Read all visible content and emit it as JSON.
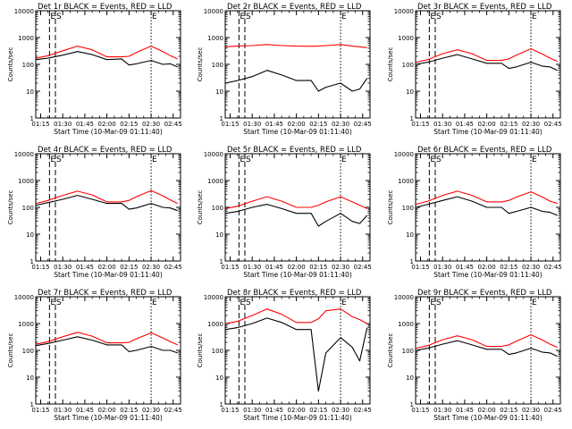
{
  "figure": {
    "axis_ylabel": "Counts/sec",
    "axis_xlabel": "Start Time (10-Mar-09 01:11:40)",
    "x_ticks": [
      "01:15",
      "01:30",
      "01:45",
      "02:00",
      "02:15",
      "02:30",
      "02:45"
    ],
    "y_ticks": [
      "1",
      "10",
      "100",
      "1000",
      "10000"
    ],
    "marker_labels": [
      "E",
      "S",
      "E"
    ]
  },
  "colors": {
    "events": "#000000",
    "lld": "#ff0000",
    "axes": "#000000"
  },
  "chart_data": [
    {
      "type": "line",
      "title": "Det 1r BLACK = Events, RED = LLD",
      "xlabel": "Start Time (10-Mar-09 01:11:40)",
      "ylabel": "Counts/sec",
      "xlim": [
        "01:11:40",
        "02:50:00"
      ],
      "ylim": [
        1,
        10000
      ],
      "y_scale": "log",
      "x_ticks": [
        "01:15",
        "01:30",
        "01:45",
        "02:00",
        "02:15",
        "02:30",
        "02:45"
      ],
      "markers": [
        {
          "label": "E",
          "time": "01:21",
          "style": "dashed"
        },
        {
          "label": "S",
          "time": "01:25",
          "style": "dashed"
        },
        {
          "label": "E",
          "time": "02:30",
          "style": "dotted"
        }
      ],
      "x": [
        "01:12",
        "01:20",
        "01:30",
        "01:40",
        "01:50",
        "02:00",
        "02:10",
        "02:15",
        "02:20",
        "02:30",
        "02:38",
        "02:43",
        "02:48"
      ],
      "series": [
        {
          "name": "Events",
          "color": "#000000",
          "values": [
            150,
            170,
            220,
            300,
            230,
            150,
            160,
            95,
            105,
            140,
            100,
            105,
            80
          ]
        },
        {
          "name": "LLD",
          "color": "#ff0000",
          "values": [
            170,
            210,
            320,
            480,
            350,
            190,
            190,
            200,
            280,
            480,
            300,
            210,
            160
          ]
        }
      ]
    },
    {
      "type": "line",
      "title": "Det 2r BLACK = Events, RED = LLD",
      "xlabel": "Start Time (10-Mar-09 01:11:40)",
      "ylabel": "Counts/sec",
      "xlim": [
        "01:11:40",
        "02:50:00"
      ],
      "ylim": [
        1,
        10000
      ],
      "y_scale": "log",
      "x_ticks": [
        "01:15",
        "01:30",
        "01:45",
        "02:00",
        "02:15",
        "02:30",
        "02:45"
      ],
      "markers": [
        {
          "label": "E",
          "time": "01:21",
          "style": "dashed"
        },
        {
          "label": "S",
          "time": "01:25",
          "style": "dashed"
        },
        {
          "label": "E",
          "time": "02:30",
          "style": "dotted"
        }
      ],
      "x": [
        "01:12",
        "01:20",
        "01:30",
        "01:40",
        "01:50",
        "02:00",
        "02:10",
        "02:15",
        "02:20",
        "02:30",
        "02:38",
        "02:43",
        "02:48"
      ],
      "series": [
        {
          "name": "Events",
          "color": "#000000",
          "values": [
            20,
            25,
            35,
            60,
            40,
            25,
            25,
            10,
            14,
            20,
            10,
            12,
            30
          ]
        },
        {
          "name": "LLD",
          "color": "#ff0000",
          "values": [
            450,
            480,
            500,
            550,
            500,
            480,
            470,
            480,
            500,
            550,
            480,
            450,
            420
          ]
        }
      ]
    },
    {
      "type": "line",
      "title": "Det 3r BLACK = Events, RED = LLD",
      "xlabel": "Start Time (10-Mar-09 01:11:40)",
      "ylabel": "Counts/sec",
      "xlim": [
        "01:11:40",
        "02:50:00"
      ],
      "ylim": [
        1,
        10000
      ],
      "y_scale": "log",
      "x_ticks": [
        "01:15",
        "01:30",
        "01:45",
        "02:00",
        "02:15",
        "02:30",
        "02:45"
      ],
      "markers": [
        {
          "label": "E",
          "time": "01:21",
          "style": "dashed"
        },
        {
          "label": "S",
          "time": "01:25",
          "style": "dashed"
        },
        {
          "label": "E",
          "time": "02:30",
          "style": "dotted"
        }
      ],
      "x": [
        "01:12",
        "01:20",
        "01:30",
        "01:40",
        "01:50",
        "02:00",
        "02:10",
        "02:15",
        "02:20",
        "02:30",
        "02:38",
        "02:43",
        "02:48"
      ],
      "series": [
        {
          "name": "Events",
          "color": "#000000",
          "values": [
            100,
            120,
            170,
            230,
            160,
            110,
            110,
            70,
            80,
            120,
            85,
            80,
            60
          ]
        },
        {
          "name": "LLD",
          "color": "#ff0000",
          "values": [
            120,
            150,
            250,
            350,
            250,
            140,
            140,
            160,
            220,
            380,
            240,
            170,
            130
          ]
        }
      ]
    },
    {
      "type": "line",
      "title": "Det 4r BLACK = Events, RED = LLD",
      "xlabel": "Start Time (10-Mar-09 01:11:40)",
      "ylabel": "Counts/sec",
      "xlim": [
        "01:11:40",
        "02:50:00"
      ],
      "ylim": [
        1,
        10000
      ],
      "y_scale": "log",
      "x_ticks": [
        "01:15",
        "01:30",
        "01:45",
        "02:00",
        "02:15",
        "02:30",
        "02:45"
      ],
      "markers": [
        {
          "label": "E",
          "time": "01:21",
          "style": "dashed"
        },
        {
          "label": "S",
          "time": "01:25",
          "style": "dashed"
        },
        {
          "label": "E",
          "time": "02:30",
          "style": "dotted"
        }
      ],
      "x": [
        "01:12",
        "01:20",
        "01:30",
        "01:40",
        "01:50",
        "02:00",
        "02:10",
        "02:15",
        "02:20",
        "02:30",
        "02:38",
        "02:43",
        "02:48"
      ],
      "series": [
        {
          "name": "Events",
          "color": "#000000",
          "values": [
            120,
            150,
            200,
            280,
            200,
            140,
            140,
            85,
            95,
            140,
            100,
            95,
            75
          ]
        },
        {
          "name": "LLD",
          "color": "#ff0000",
          "values": [
            140,
            180,
            280,
            400,
            290,
            160,
            160,
            180,
            250,
            420,
            270,
            190,
            140
          ]
        }
      ]
    },
    {
      "type": "line",
      "title": "Det 5r BLACK = Events, RED = LLD",
      "xlabel": "Start Time (10-Mar-09 01:11:40)",
      "ylabel": "Counts/sec",
      "xlim": [
        "01:11:40",
        "02:50:00"
      ],
      "ylim": [
        1,
        10000
      ],
      "y_scale": "log",
      "x_ticks": [
        "01:15",
        "01:30",
        "01:45",
        "02:00",
        "02:15",
        "02:30",
        "02:45"
      ],
      "markers": [
        {
          "label": "E",
          "time": "01:21",
          "style": "dashed"
        },
        {
          "label": "S",
          "time": "01:25",
          "style": "dashed"
        },
        {
          "label": "E",
          "time": "02:30",
          "style": "dotted"
        }
      ],
      "x": [
        "01:12",
        "01:20",
        "01:30",
        "01:40",
        "01:50",
        "02:00",
        "02:10",
        "02:15",
        "02:20",
        "02:30",
        "02:38",
        "02:43",
        "02:48"
      ],
      "series": [
        {
          "name": "Events",
          "color": "#000000",
          "values": [
            60,
            70,
            100,
            130,
            90,
            60,
            60,
            20,
            30,
            60,
            30,
            25,
            50
          ]
        },
        {
          "name": "LLD",
          "color": "#ff0000",
          "values": [
            90,
            110,
            170,
            250,
            170,
            100,
            100,
            120,
            160,
            250,
            160,
            120,
            90
          ]
        }
      ]
    },
    {
      "type": "line",
      "title": "Det 6r BLACK = Events, RED = LLD",
      "xlabel": "Start Time (10-Mar-09 01:11:40)",
      "ylabel": "Counts/sec",
      "xlim": [
        "01:11:40",
        "02:50:00"
      ],
      "ylim": [
        1,
        10000
      ],
      "y_scale": "log",
      "x_ticks": [
        "01:15",
        "01:30",
        "01:45",
        "02:00",
        "02:15",
        "02:30",
        "02:45"
      ],
      "markers": [
        {
          "label": "E",
          "time": "01:21",
          "style": "dashed"
        },
        {
          "label": "S",
          "time": "01:25",
          "style": "dashed"
        },
        {
          "label": "E",
          "time": "02:30",
          "style": "dotted"
        }
      ],
      "x": [
        "01:12",
        "01:20",
        "01:30",
        "01:40",
        "01:50",
        "02:00",
        "02:10",
        "02:15",
        "02:20",
        "02:30",
        "02:38",
        "02:43",
        "02:48"
      ],
      "series": [
        {
          "name": "Events",
          "color": "#000000",
          "values": [
            100,
            130,
            180,
            250,
            170,
            100,
            100,
            60,
            70,
            100,
            70,
            65,
            50
          ]
        },
        {
          "name": "LLD",
          "color": "#ff0000",
          "values": [
            130,
            170,
            280,
            400,
            280,
            160,
            160,
            180,
            240,
            380,
            240,
            170,
            140
          ]
        }
      ]
    },
    {
      "type": "line",
      "title": "Det 7r BLACK = Events, RED = LLD",
      "xlabel": "Start Time (10-Mar-09 01:11:40)",
      "ylabel": "Counts/sec",
      "xlim": [
        "01:11:40",
        "02:50:00"
      ],
      "ylim": [
        1,
        10000
      ],
      "y_scale": "log",
      "x_ticks": [
        "01:15",
        "01:30",
        "01:45",
        "02:00",
        "02:15",
        "02:30",
        "02:45"
      ],
      "markers": [
        {
          "label": "E",
          "time": "01:21",
          "style": "dashed"
        },
        {
          "label": "S",
          "time": "01:25",
          "style": "dashed"
        },
        {
          "label": "E",
          "time": "02:30",
          "style": "dotted"
        }
      ],
      "x": [
        "01:12",
        "01:20",
        "01:30",
        "01:40",
        "01:50",
        "02:00",
        "02:10",
        "02:15",
        "02:20",
        "02:30",
        "02:38",
        "02:43",
        "02:48"
      ],
      "series": [
        {
          "name": "Events",
          "color": "#000000",
          "values": [
            150,
            180,
            240,
            320,
            240,
            160,
            160,
            90,
            100,
            140,
            100,
            100,
            80
          ]
        },
        {
          "name": "LLD",
          "color": "#ff0000",
          "values": [
            170,
            210,
            320,
            470,
            340,
            190,
            190,
            200,
            270,
            450,
            290,
            210,
            160
          ]
        }
      ]
    },
    {
      "type": "line",
      "title": "Det 8r BLACK = Events, RED = LLD",
      "xlabel": "Start Time (10-Mar-09 01:11:40)",
      "ylabel": "Counts/sec",
      "xlim": [
        "01:11:40",
        "02:50:00"
      ],
      "ylim": [
        1,
        10000
      ],
      "y_scale": "log",
      "x_ticks": [
        "01:15",
        "01:30",
        "01:45",
        "02:00",
        "02:15",
        "02:30",
        "02:45"
      ],
      "markers": [
        {
          "label": "E",
          "time": "01:21",
          "style": "dashed"
        },
        {
          "label": "S",
          "time": "01:25",
          "style": "dashed"
        },
        {
          "label": "E",
          "time": "02:30",
          "style": "dotted"
        }
      ],
      "x": [
        "01:12",
        "01:20",
        "01:30",
        "01:40",
        "01:50",
        "02:00",
        "02:10",
        "02:15",
        "02:20",
        "02:30",
        "02:38",
        "02:43",
        "02:48"
      ],
      "series": [
        {
          "name": "Events",
          "color": "#000000",
          "values": [
            600,
            700,
            1000,
            1600,
            1100,
            600,
            600,
            3,
            80,
            300,
            130,
            40,
            700
          ]
        },
        {
          "name": "LLD",
          "color": "#ff0000",
          "values": [
            1000,
            1200,
            2000,
            3500,
            2200,
            1100,
            1100,
            1500,
            3000,
            3500,
            1800,
            1400,
            1000
          ]
        }
      ]
    },
    {
      "type": "line",
      "title": "Det 9r BLACK = Events, RED = LLD",
      "xlabel": "Start Time (10-Mar-09 01:11:40)",
      "ylabel": "Counts/sec",
      "xlim": [
        "01:11:40",
        "02:50:00"
      ],
      "ylim": [
        1,
        10000
      ],
      "y_scale": "log",
      "x_ticks": [
        "01:15",
        "01:30",
        "01:45",
        "02:00",
        "02:15",
        "02:30",
        "02:45"
      ],
      "markers": [
        {
          "label": "E",
          "time": "01:21",
          "style": "dashed"
        },
        {
          "label": "S",
          "time": "01:25",
          "style": "dashed"
        },
        {
          "label": "E",
          "time": "02:30",
          "style": "dotted"
        }
      ],
      "x": [
        "01:12",
        "01:20",
        "01:30",
        "01:40",
        "01:50",
        "02:00",
        "02:10",
        "02:15",
        "02:20",
        "02:30",
        "02:38",
        "02:43",
        "02:48"
      ],
      "series": [
        {
          "name": "Events",
          "color": "#000000",
          "values": [
            100,
            120,
            170,
            230,
            160,
            110,
            110,
            70,
            80,
            120,
            85,
            80,
            60
          ]
        },
        {
          "name": "LLD",
          "color": "#ff0000",
          "values": [
            120,
            150,
            250,
            350,
            250,
            140,
            140,
            160,
            220,
            380,
            240,
            170,
            130
          ]
        }
      ]
    }
  ]
}
